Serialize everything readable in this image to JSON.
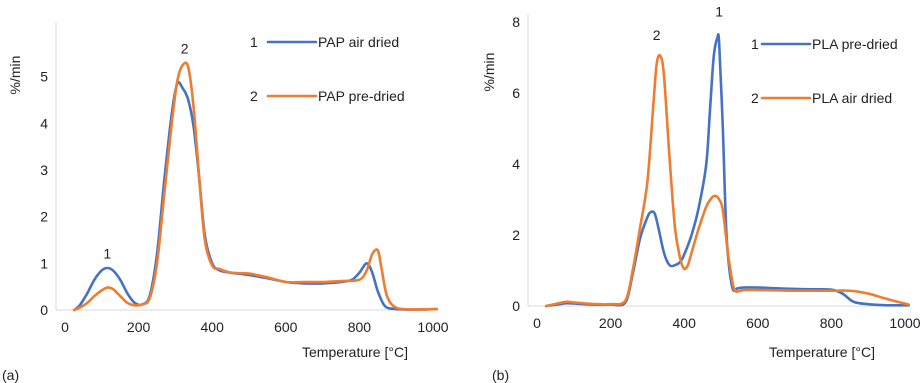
{
  "chart_data": [
    {
      "type": "line",
      "panel_label": "(a)",
      "xlabel": "Temperature [°C]",
      "ylabel": "%/min",
      "xlim": [
        0,
        1000
      ],
      "ylim": [
        0,
        6
      ],
      "xticks": [
        0,
        200,
        400,
        600,
        800,
        1000
      ],
      "yticks": [
        0,
        1,
        2,
        3,
        4,
        5
      ],
      "grid": false,
      "legend_position": "top-right",
      "series": [
        {
          "name": "PAP air dried",
          "legend_number": "1",
          "color": "#4472C4",
          "x": [
            25,
            40,
            60,
            80,
            100,
            115,
            130,
            150,
            170,
            190,
            210,
            230,
            250,
            270,
            290,
            305,
            320,
            335,
            350,
            365,
            380,
            400,
            420,
            450,
            500,
            550,
            600,
            650,
            700,
            750,
            780,
            800,
            820,
            835,
            850,
            870,
            900,
            950,
            1010
          ],
          "y": [
            0.0,
            0.1,
            0.35,
            0.65,
            0.85,
            0.9,
            0.85,
            0.65,
            0.35,
            0.15,
            0.12,
            0.3,
            1.2,
            2.8,
            4.2,
            4.85,
            4.75,
            4.5,
            3.9,
            2.8,
            1.6,
            1.0,
            0.85,
            0.8,
            0.75,
            0.68,
            0.6,
            0.57,
            0.57,
            0.6,
            0.65,
            0.8,
            1.0,
            0.8,
            0.4,
            0.08,
            0.02,
            0.01,
            0.02
          ]
        },
        {
          "name": "PAP pre-dried",
          "legend_number": "2",
          "color": "#ED7D31",
          "x": [
            25,
            40,
            60,
            80,
            100,
            115,
            130,
            150,
            170,
            190,
            210,
            230,
            250,
            270,
            290,
            305,
            320,
            335,
            350,
            365,
            380,
            400,
            420,
            450,
            500,
            550,
            600,
            650,
            700,
            750,
            800,
            820,
            835,
            850,
            860,
            875,
            900,
            950,
            1010
          ],
          "y": [
            0.0,
            0.05,
            0.15,
            0.3,
            0.42,
            0.48,
            0.45,
            0.3,
            0.15,
            0.1,
            0.12,
            0.25,
            1.0,
            2.5,
            4.0,
            4.9,
            5.25,
            5.2,
            4.3,
            2.8,
            1.5,
            0.95,
            0.88,
            0.8,
            0.78,
            0.7,
            0.6,
            0.6,
            0.6,
            0.62,
            0.65,
            0.85,
            1.2,
            1.28,
            0.9,
            0.3,
            0.05,
            0.01,
            0.02
          ]
        }
      ],
      "annotations": [
        {
          "text": "1",
          "x": 115,
          "y": 1.1
        },
        {
          "text": "2",
          "x": 325,
          "y": 5.5
        }
      ]
    },
    {
      "type": "line",
      "panel_label": "(b)",
      "xlabel": "Temperature [°C]",
      "ylabel": "%/min",
      "xlim": [
        0,
        1000
      ],
      "ylim": [
        0,
        8
      ],
      "xticks": [
        0,
        200,
        400,
        600,
        800,
        1000
      ],
      "yticks": [
        0,
        2,
        4,
        6,
        8
      ],
      "grid": false,
      "legend_position": "top-right",
      "series": [
        {
          "name": "PLA pre-dried",
          "legend_number": "1",
          "color": "#4472C4",
          "x": [
            25,
            60,
            80,
            100,
            150,
            200,
            240,
            260,
            280,
            300,
            310,
            320,
            330,
            345,
            360,
            375,
            390,
            400,
            420,
            440,
            460,
            470,
            480,
            490,
            495,
            505,
            515,
            530,
            545,
            560,
            600,
            650,
            700,
            750,
            800,
            830,
            860,
            900,
            950,
            1010
          ],
          "y": [
            0.0,
            0.05,
            0.08,
            0.07,
            0.04,
            0.04,
            0.1,
            0.9,
            1.9,
            2.5,
            2.65,
            2.6,
            2.2,
            1.5,
            1.15,
            1.15,
            1.25,
            1.45,
            2.0,
            2.8,
            4.0,
            5.5,
            7.0,
            7.55,
            7.4,
            5.0,
            2.0,
            0.55,
            0.5,
            0.52,
            0.52,
            0.5,
            0.48,
            0.47,
            0.46,
            0.35,
            0.12,
            0.05,
            0.02,
            0.02
          ]
        },
        {
          "name": "PLA air dried",
          "legend_number": "2",
          "color": "#ED7D31",
          "x": [
            25,
            60,
            80,
            100,
            150,
            200,
            240,
            260,
            280,
            300,
            315,
            325,
            335,
            345,
            360,
            375,
            390,
            400,
            410,
            420,
            440,
            460,
            475,
            485,
            495,
            505,
            520,
            535,
            550,
            560,
            600,
            650,
            700,
            750,
            800,
            850,
            900,
            950,
            1010
          ],
          "y": [
            0.0,
            0.08,
            0.12,
            0.1,
            0.06,
            0.05,
            0.15,
            1.0,
            2.2,
            3.5,
            5.5,
            6.8,
            7.05,
            6.5,
            4.2,
            2.2,
            1.3,
            1.05,
            1.15,
            1.5,
            2.2,
            2.8,
            3.05,
            3.1,
            3.0,
            2.7,
            1.4,
            0.5,
            0.42,
            0.45,
            0.45,
            0.44,
            0.43,
            0.43,
            0.43,
            0.43,
            0.35,
            0.2,
            0.04
          ]
        }
      ],
      "annotations": [
        {
          "text": "2",
          "x": 325,
          "y": 7.5
        },
        {
          "text": "1",
          "x": 495,
          "y": 8.15
        }
      ]
    }
  ]
}
